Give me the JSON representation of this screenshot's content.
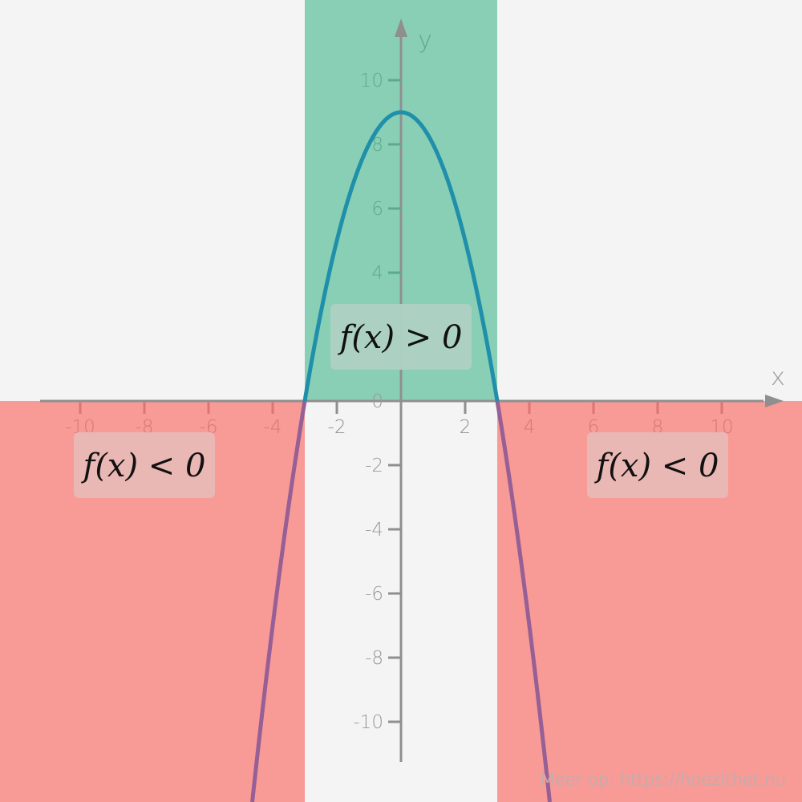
{
  "chart_data": {
    "type": "line",
    "function": "f(x) = 9 - x^2",
    "roots": [
      -3,
      3
    ],
    "vertex": [
      0,
      9
    ],
    "xlim": [
      -12.5,
      12.5
    ],
    "ylim": [
      -12.5,
      12.5
    ],
    "x_ticks": [
      -10,
      -8,
      -6,
      -4,
      -2,
      0,
      2,
      4,
      6,
      8,
      10
    ],
    "y_ticks": [
      -10,
      -8,
      -6,
      -4,
      -2,
      0,
      2,
      4,
      6,
      8,
      10
    ],
    "x_tick_labels": [
      "-10",
      "-8",
      "-6",
      "-4",
      "-2",
      "0",
      "2",
      "4",
      "6",
      "8",
      "10"
    ],
    "y_tick_labels": [
      "-10",
      "-8",
      "-6",
      "-4",
      "-2",
      "0",
      "2",
      "4",
      "6",
      "8",
      "10"
    ],
    "xlabel": "x",
    "ylabel": "y",
    "grid": false,
    "regions": [
      {
        "label": "f(x) < 0",
        "x_range": [
          -12.5,
          -3
        ],
        "sign": "negative"
      },
      {
        "label": "f(x) > 0",
        "x_range": [
          -3,
          3
        ],
        "sign": "positive"
      },
      {
        "label": "f(x) < 0",
        "x_range": [
          3,
          12.5
        ],
        "sign": "negative"
      }
    ],
    "colors": {
      "positive_region": "#88cfb5",
      "negative_region": "#f89a96",
      "curve": "#1f8faa",
      "curve_in_negative": "#965f95",
      "axis": "#8f8f8f",
      "label_box": "#dcdcdc"
    }
  },
  "watermark": "Meer op: https://hoezithet.nu"
}
